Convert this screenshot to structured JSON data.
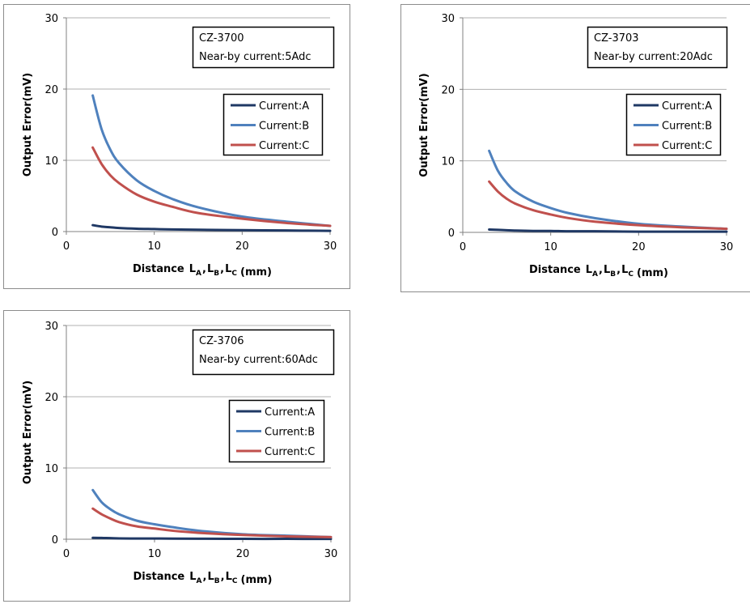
{
  "colors": {
    "current_a": "#1f3864",
    "current_b": "#4f81bd",
    "current_c": "#c0504d",
    "grid": "#b0b0b0",
    "panel_border": "#8c8c8c"
  },
  "chart_data": [
    {
      "type": "line",
      "model": "CZ-3700",
      "condition": "Near-by current:5Adc",
      "ylabel": "Output Error(mV)",
      "xlabel_prefix": "Distance",
      "xlabel_unit": "(mm)",
      "xlabel_terms": [
        {
          "base": "L",
          "sub": "A",
          "sep": ","
        },
        {
          "base": "L",
          "sub": "B",
          "sep": ","
        },
        {
          "base": "L",
          "sub": "C",
          "sep": ""
        }
      ],
      "xlim": [
        0,
        30
      ],
      "ylim": [
        0,
        30
      ],
      "xticks": [
        0,
        10,
        20,
        30
      ],
      "yticks": [
        0,
        10,
        20,
        30
      ],
      "grid": true,
      "legend_position": "right",
      "x": [
        3,
        4,
        5,
        6,
        8,
        10,
        12,
        15,
        20,
        25,
        30
      ],
      "series": [
        {
          "name": "Current:A",
          "values": [
            0.9,
            0.7,
            0.6,
            0.5,
            0.4,
            0.35,
            0.3,
            0.25,
            0.2,
            0.15,
            0.1
          ]
        },
        {
          "name": "Current:B",
          "values": [
            19.1,
            14.4,
            11.5,
            9.6,
            7.2,
            5.7,
            4.6,
            3.4,
            2.1,
            1.4,
            0.8
          ]
        },
        {
          "name": "Current:C",
          "values": [
            11.8,
            9.5,
            7.9,
            6.8,
            5.2,
            4.2,
            3.5,
            2.6,
            1.8,
            1.2,
            0.8
          ]
        }
      ]
    },
    {
      "type": "line",
      "model": "CZ-3703",
      "condition": "Near-by current:20Adc",
      "ylabel": "Output Error(mV)",
      "xlabel_prefix": "Distance",
      "xlabel_unit": "(mm)",
      "xlabel_terms": [
        {
          "base": "L",
          "sub": "A",
          "sep": ","
        },
        {
          "base": "L",
          "sub": "B",
          "sep": ","
        },
        {
          "base": "L",
          "sub": "C",
          "sep": ""
        }
      ],
      "xlim": [
        0,
        30
      ],
      "ylim": [
        0,
        30
      ],
      "xticks": [
        0,
        10,
        20,
        30
      ],
      "yticks": [
        0,
        10,
        20,
        30
      ],
      "grid": true,
      "legend_position": "right",
      "x": [
        3,
        4,
        5,
        6,
        8,
        10,
        12,
        15,
        20,
        25,
        30
      ],
      "series": [
        {
          "name": "Current:A",
          "values": [
            0.4,
            0.35,
            0.3,
            0.25,
            0.2,
            0.2,
            0.15,
            0.15,
            0.1,
            0.1,
            0.1
          ]
        },
        {
          "name": "Current:B",
          "values": [
            11.4,
            8.6,
            6.9,
            5.7,
            4.3,
            3.4,
            2.7,
            2.0,
            1.2,
            0.8,
            0.5
          ]
        },
        {
          "name": "Current:C",
          "values": [
            7.1,
            5.7,
            4.7,
            4.0,
            3.1,
            2.5,
            2.0,
            1.5,
            1.0,
            0.7,
            0.5
          ]
        }
      ]
    },
    {
      "type": "line",
      "model": "CZ-3706",
      "condition": "Near-by current:60Adc",
      "ylabel": "Output Error(mV)",
      "xlabel_prefix": "Distance",
      "xlabel_unit": "(mm)",
      "xlabel_terms": [
        {
          "base": "L",
          "sub": "A",
          "sep": ","
        },
        {
          "base": "L",
          "sub": "B",
          "sep": ","
        },
        {
          "base": "L",
          "sub": "C",
          "sep": ""
        }
      ],
      "xlim": [
        0,
        30
      ],
      "ylim": [
        0,
        30
      ],
      "xticks": [
        0,
        10,
        20,
        30
      ],
      "yticks": [
        0,
        10,
        20,
        30
      ],
      "grid": true,
      "legend_position": "right",
      "x": [
        3,
        4,
        5,
        6,
        8,
        10,
        12,
        15,
        20,
        25,
        30
      ],
      "series": [
        {
          "name": "Current:A",
          "values": [
            0.2,
            0.18,
            0.15,
            0.12,
            0.1,
            0.1,
            0.08,
            0.07,
            0.05,
            0.05,
            0.04
          ]
        },
        {
          "name": "Current:B",
          "values": [
            6.9,
            5.2,
            4.2,
            3.5,
            2.6,
            2.1,
            1.7,
            1.2,
            0.7,
            0.5,
            0.3
          ]
        },
        {
          "name": "Current:C",
          "values": [
            4.3,
            3.5,
            2.9,
            2.4,
            1.8,
            1.5,
            1.2,
            0.9,
            0.6,
            0.4,
            0.3
          ]
        }
      ]
    }
  ]
}
